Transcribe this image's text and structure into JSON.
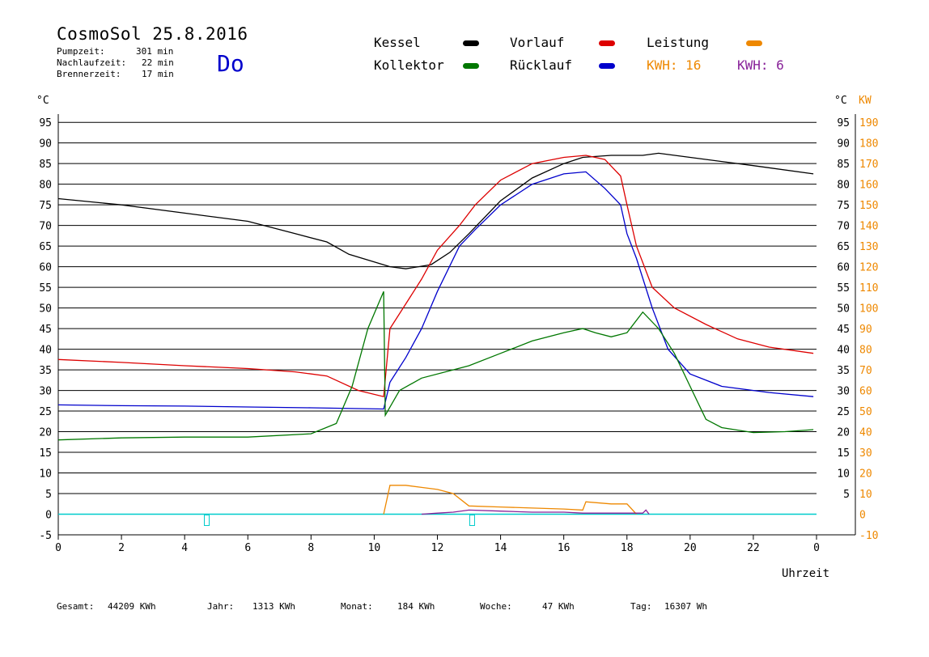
{
  "header": {
    "title": "CosmoSol 25.8.2016",
    "day": "Do",
    "info": [
      {
        "label": "Pumpzeit:",
        "value": "301 min"
      },
      {
        "label": "Nachlaufzeit:",
        "value": "22 min"
      },
      {
        "label": "Brennerzeit:",
        "value": "17 min"
      }
    ]
  },
  "legend": {
    "kessel": "Kessel",
    "vorlauf": "Vorlauf",
    "leistung": "Leistung",
    "kollektor": "Kollektor",
    "ruecklauf": "Rücklauf",
    "kwh1": "KWH: 16",
    "kwh2": "KWH: 6"
  },
  "axes": {
    "left_unit": "°C",
    "right_unit_c": "°C",
    "right_unit_kw": "KW",
    "xlabel": "Uhrzeit"
  },
  "stats": [
    {
      "label": "Gesamt:",
      "value": "44209 KWh"
    },
    {
      "label": "Jahr:",
      "value": "1313 KWh"
    },
    {
      "label": "Monat:",
      "value": "184 KWh"
    },
    {
      "label": "Woche:",
      "value": "47 KWh"
    },
    {
      "label": "Tag:",
      "value": "16307 Wh"
    }
  ],
  "colors": {
    "kessel": "#000000",
    "vorlauf": "#dd0000",
    "ruecklauf": "#0000cc",
    "kollektor": "#007700",
    "leistung": "#ee8800",
    "kwh2": "#882299",
    "baseline": "#00cccc",
    "kw_axis": "#ee8800"
  },
  "chart_data": {
    "type": "line",
    "title": "CosmoSol 25.8.2016",
    "xlabel": "Uhrzeit",
    "ylabel": "°C",
    "xlim": [
      0,
      24
    ],
    "ylim": [
      -5,
      100
    ],
    "x_ticks": [
      "0",
      "2",
      "4",
      "6",
      "8",
      "10",
      "12",
      "14",
      "16",
      "18",
      "20",
      "22",
      "0"
    ],
    "left_ticks": [
      "95",
      "90",
      "85",
      "80",
      "75",
      "70",
      "65",
      "60",
      "55",
      "50",
      "45",
      "40",
      "35",
      "30",
      "25",
      "20",
      "15",
      "10",
      "5",
      "0",
      "-5"
    ],
    "right_ticks_c": [
      "95",
      "90",
      "85",
      "80",
      "75",
      "70",
      "65",
      "60",
      "55",
      "50",
      "45",
      "40",
      "35",
      "30",
      "25",
      "20",
      "15",
      "10",
      "5"
    ],
    "right_ticks_kw": [
      "190",
      "180",
      "170",
      "160",
      "150",
      "140",
      "130",
      "120",
      "110",
      "100",
      "90",
      "80",
      "70",
      "60",
      "50",
      "40",
      "30",
      "20",
      "10",
      "0",
      "-10"
    ],
    "grid": true,
    "legend_position": "top",
    "series": [
      {
        "name": "Kessel",
        "color": "#000000",
        "points": [
          [
            0,
            76.5
          ],
          [
            2,
            75
          ],
          [
            4,
            73
          ],
          [
            6,
            71
          ],
          [
            7.5,
            68
          ],
          [
            8.5,
            66
          ],
          [
            9.2,
            63
          ],
          [
            10.5,
            60
          ],
          [
            11,
            59.5
          ],
          [
            11.8,
            60.5
          ],
          [
            12.4,
            63.5
          ],
          [
            13,
            68
          ],
          [
            14,
            76
          ],
          [
            15,
            81.5
          ],
          [
            16,
            85
          ],
          [
            16.6,
            86.5
          ],
          [
            17.5,
            87
          ],
          [
            18.5,
            87
          ],
          [
            19,
            87.5
          ],
          [
            20,
            86.5
          ],
          [
            22,
            84.5
          ],
          [
            23.9,
            82.5
          ]
        ]
      },
      {
        "name": "Vorlauf",
        "color": "#dd0000",
        "points": [
          [
            0,
            37.5
          ],
          [
            2,
            36.8
          ],
          [
            4,
            36
          ],
          [
            6,
            35.3
          ],
          [
            7.5,
            34.5
          ],
          [
            8.5,
            33.5
          ],
          [
            9.5,
            30
          ],
          [
            10.3,
            28.5
          ],
          [
            10.5,
            45
          ],
          [
            11,
            51
          ],
          [
            11.5,
            57
          ],
          [
            12,
            64
          ],
          [
            12.7,
            70
          ],
          [
            13.2,
            75
          ],
          [
            14,
            81
          ],
          [
            15,
            85
          ],
          [
            16,
            86.5
          ],
          [
            16.7,
            87
          ],
          [
            17.3,
            86
          ],
          [
            17.8,
            82
          ],
          [
            18,
            75
          ],
          [
            18.3,
            65
          ],
          [
            18.8,
            55
          ],
          [
            19.5,
            50
          ],
          [
            20.5,
            46
          ],
          [
            21.5,
            42.5
          ],
          [
            22.5,
            40.5
          ],
          [
            23.9,
            39
          ]
        ]
      },
      {
        "name": "Rücklauf",
        "color": "#0000cc",
        "points": [
          [
            0,
            26.5
          ],
          [
            2,
            26.3
          ],
          [
            4,
            26.2
          ],
          [
            6,
            26
          ],
          [
            8,
            25.8
          ],
          [
            10.3,
            25.5
          ],
          [
            10.5,
            32
          ],
          [
            11,
            38
          ],
          [
            11.5,
            45
          ],
          [
            12,
            54
          ],
          [
            12.7,
            65
          ],
          [
            13.2,
            69
          ],
          [
            14,
            75
          ],
          [
            15,
            80
          ],
          [
            16,
            82.5
          ],
          [
            16.7,
            83
          ],
          [
            17.3,
            79
          ],
          [
            17.8,
            75
          ],
          [
            18,
            68
          ],
          [
            18.3,
            62
          ],
          [
            18.8,
            50
          ],
          [
            19.3,
            40
          ],
          [
            20,
            34
          ],
          [
            21,
            31
          ],
          [
            22.5,
            29.5
          ],
          [
            23.9,
            28.5
          ]
        ]
      },
      {
        "name": "Kollektor",
        "color": "#007700",
        "points": [
          [
            0,
            18
          ],
          [
            2,
            18.5
          ],
          [
            4,
            18.7
          ],
          [
            6,
            18.7
          ],
          [
            8,
            19.5
          ],
          [
            8.8,
            22
          ],
          [
            9.3,
            31
          ],
          [
            9.8,
            45
          ],
          [
            10.3,
            54
          ],
          [
            10.35,
            24
          ],
          [
            10.8,
            30
          ],
          [
            11.5,
            33
          ],
          [
            12.5,
            35
          ],
          [
            13,
            36
          ],
          [
            14,
            39
          ],
          [
            15,
            42
          ],
          [
            16,
            44
          ],
          [
            16.6,
            45
          ],
          [
            17,
            44
          ],
          [
            17.5,
            43
          ],
          [
            18,
            44
          ],
          [
            18.5,
            49
          ],
          [
            19,
            45
          ],
          [
            19.5,
            39
          ],
          [
            20,
            31
          ],
          [
            20.5,
            23
          ],
          [
            21,
            21
          ],
          [
            22,
            19.8
          ],
          [
            23,
            20
          ],
          [
            23.9,
            20.5
          ]
        ]
      },
      {
        "name": "Leistung",
        "color": "#ee8800",
        "axis": "KW",
        "points": [
          [
            10.3,
            0
          ],
          [
            10.5,
            14
          ],
          [
            11,
            14
          ],
          [
            11.5,
            13
          ],
          [
            12,
            12
          ],
          [
            12.5,
            10
          ],
          [
            13,
            4
          ],
          [
            14,
            3.5
          ],
          [
            15,
            3
          ],
          [
            16,
            2.5
          ],
          [
            16.6,
            2
          ],
          [
            16.7,
            6
          ],
          [
            17.5,
            5
          ],
          [
            18,
            5
          ],
          [
            18.3,
            0
          ]
        ]
      },
      {
        "name": "KWH: 6",
        "color": "#882299",
        "axis": "KW",
        "points": [
          [
            11.5,
            0
          ],
          [
            12,
            0.5
          ],
          [
            12.5,
            1
          ],
          [
            13,
            2
          ],
          [
            14,
            1.5
          ],
          [
            15,
            1
          ],
          [
            16,
            1
          ],
          [
            16.6,
            0.5
          ],
          [
            18.5,
            0.5
          ],
          [
            18.6,
            2
          ],
          [
            18.7,
            0
          ]
        ]
      }
    ]
  }
}
